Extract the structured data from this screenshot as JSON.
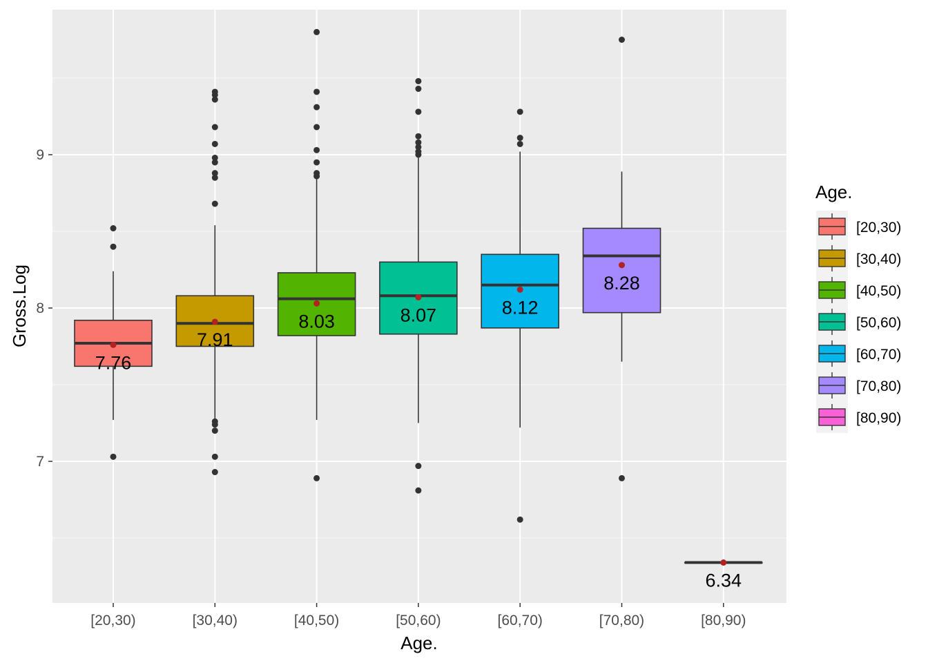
{
  "chart_data": {
    "type": "boxplot",
    "xlabel": "Age.",
    "ylabel": "Gross.Log",
    "ylim": [
      6.14,
      10.0
    ],
    "yticks": [
      7,
      8,
      9
    ],
    "ytick_labels": [
      "7",
      "8",
      "9"
    ],
    "legend": {
      "title": "Age.",
      "placement": "right"
    },
    "colors": {
      "panel": "#ebebeb",
      "grid_major": "#ffffff",
      "outlier": "#333333",
      "mean_point": "#b22222",
      "box_line": "#333333"
    },
    "groups": [
      {
        "label": "[20,30)",
        "fill": "#f8766d",
        "q1": 7.62,
        "median": 7.77,
        "q3": 7.92,
        "whisker_low": 7.27,
        "whisker_high": 8.24,
        "mean": 7.76,
        "mean_label": "7.76",
        "outliers": [
          8.52,
          8.4,
          7.03
        ]
      },
      {
        "label": "[30,40)",
        "fill": "#c49a00",
        "q1": 7.75,
        "median": 7.9,
        "q3": 8.08,
        "whisker_low": 7.27,
        "whisker_high": 8.54,
        "mean": 7.91,
        "mean_label": "7.91",
        "outliers": [
          9.41,
          9.39,
          9.36,
          9.18,
          9.07,
          8.98,
          8.95,
          8.88,
          8.85,
          8.68,
          7.26,
          7.24,
          7.2,
          7.03,
          6.93
        ]
      },
      {
        "label": "[40,50)",
        "fill": "#53b400",
        "q1": 7.82,
        "median": 8.06,
        "q3": 8.23,
        "whisker_low": 7.27,
        "whisker_high": 8.84,
        "mean": 8.03,
        "mean_label": "8.03",
        "outliers": [
          9.8,
          9.41,
          9.31,
          9.18,
          9.03,
          8.95,
          8.88,
          8.86,
          6.89
        ]
      },
      {
        "label": "[50,60)",
        "fill": "#00c094",
        "q1": 7.83,
        "median": 8.08,
        "q3": 8.3,
        "whisker_low": 7.25,
        "whisker_high": 8.98,
        "mean": 8.07,
        "mean_label": "8.07",
        "outliers": [
          9.48,
          9.43,
          9.28,
          9.12,
          9.08,
          9.05,
          9.02,
          9.0,
          6.97,
          6.81
        ]
      },
      {
        "label": "[60,70)",
        "fill": "#00b6eb",
        "q1": 7.87,
        "median": 8.15,
        "q3": 8.35,
        "whisker_low": 7.22,
        "whisker_high": 9.02,
        "mean": 8.12,
        "mean_label": "8.12",
        "outliers": [
          9.28,
          9.11,
          9.07,
          6.62
        ]
      },
      {
        "label": "[70,80)",
        "fill": "#a58aff",
        "q1": 7.97,
        "median": 8.34,
        "q3": 8.52,
        "whisker_low": 7.65,
        "whisker_high": 8.89,
        "mean": 8.28,
        "mean_label": "8.28",
        "outliers": [
          9.75,
          6.89
        ]
      },
      {
        "label": "[80,90)",
        "fill": "#fb61d7",
        "q1": 6.34,
        "median": 6.34,
        "q3": 6.34,
        "whisker_low": 6.34,
        "whisker_high": 6.34,
        "mean": 6.34,
        "mean_label": "6.34",
        "outliers": []
      }
    ]
  }
}
